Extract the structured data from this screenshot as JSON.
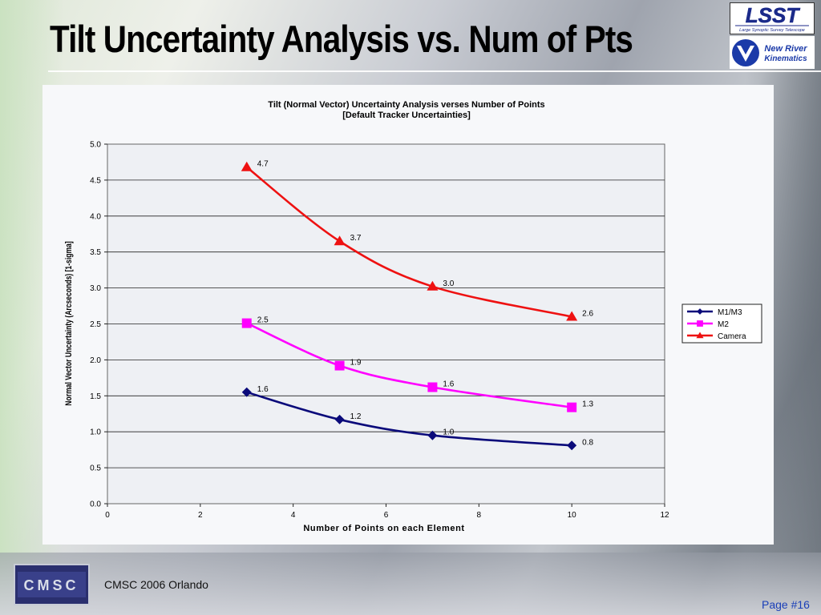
{
  "slide": {
    "title": "Tilt Uncertainty Analysis vs. Num of Pts",
    "footer": "CMSC 2006 Orlando",
    "page": "Page #16"
  },
  "logos": {
    "lsst_text": "LSST",
    "lsst_sub": "Large Synoptic Survey Telescope",
    "nrk_line1": "New River",
    "nrk_line2": "Kinematics",
    "cmsc_text": "CMSC"
  },
  "chart_data": {
    "type": "line",
    "title": "Tilt (Normal Vector) Uncertainty Analysis verses Number of Points",
    "subtitle": "[Default Tracker Uncertainties]",
    "xlabel": "Number of Points on each Element",
    "ylabel": "Normal Vector Uncertainty (Arcseconds) [1-sigma]",
    "xlim": [
      0,
      12
    ],
    "ylim": [
      0,
      5
    ],
    "xticks": [
      0,
      2,
      4,
      6,
      8,
      10,
      12
    ],
    "yticks": [
      "0.0",
      "0.5",
      "1.0",
      "1.5",
      "2.0",
      "2.5",
      "3.0",
      "3.5",
      "4.0",
      "4.5",
      "5.0"
    ],
    "grid": "horizontal",
    "legend_position": "right",
    "x": [
      3,
      5,
      7,
      10
    ],
    "series": [
      {
        "name": "M1/M3",
        "color": "#0a0a7a",
        "marker": "diamond",
        "values": [
          1.55,
          1.17,
          0.95,
          0.81
        ],
        "labels": [
          "1.6",
          "1.2",
          "1.0",
          "0.8"
        ]
      },
      {
        "name": "M2",
        "color": "#ff00ff",
        "marker": "square",
        "values": [
          2.51,
          1.92,
          1.62,
          1.34
        ],
        "labels": [
          "2.5",
          "1.9",
          "1.6",
          "1.3"
        ]
      },
      {
        "name": "Camera",
        "color": "#ee1111",
        "marker": "triangle",
        "values": [
          4.68,
          3.65,
          3.02,
          2.6
        ],
        "labels": [
          "4.7",
          "3.7",
          "3.0",
          "2.6"
        ]
      }
    ]
  }
}
